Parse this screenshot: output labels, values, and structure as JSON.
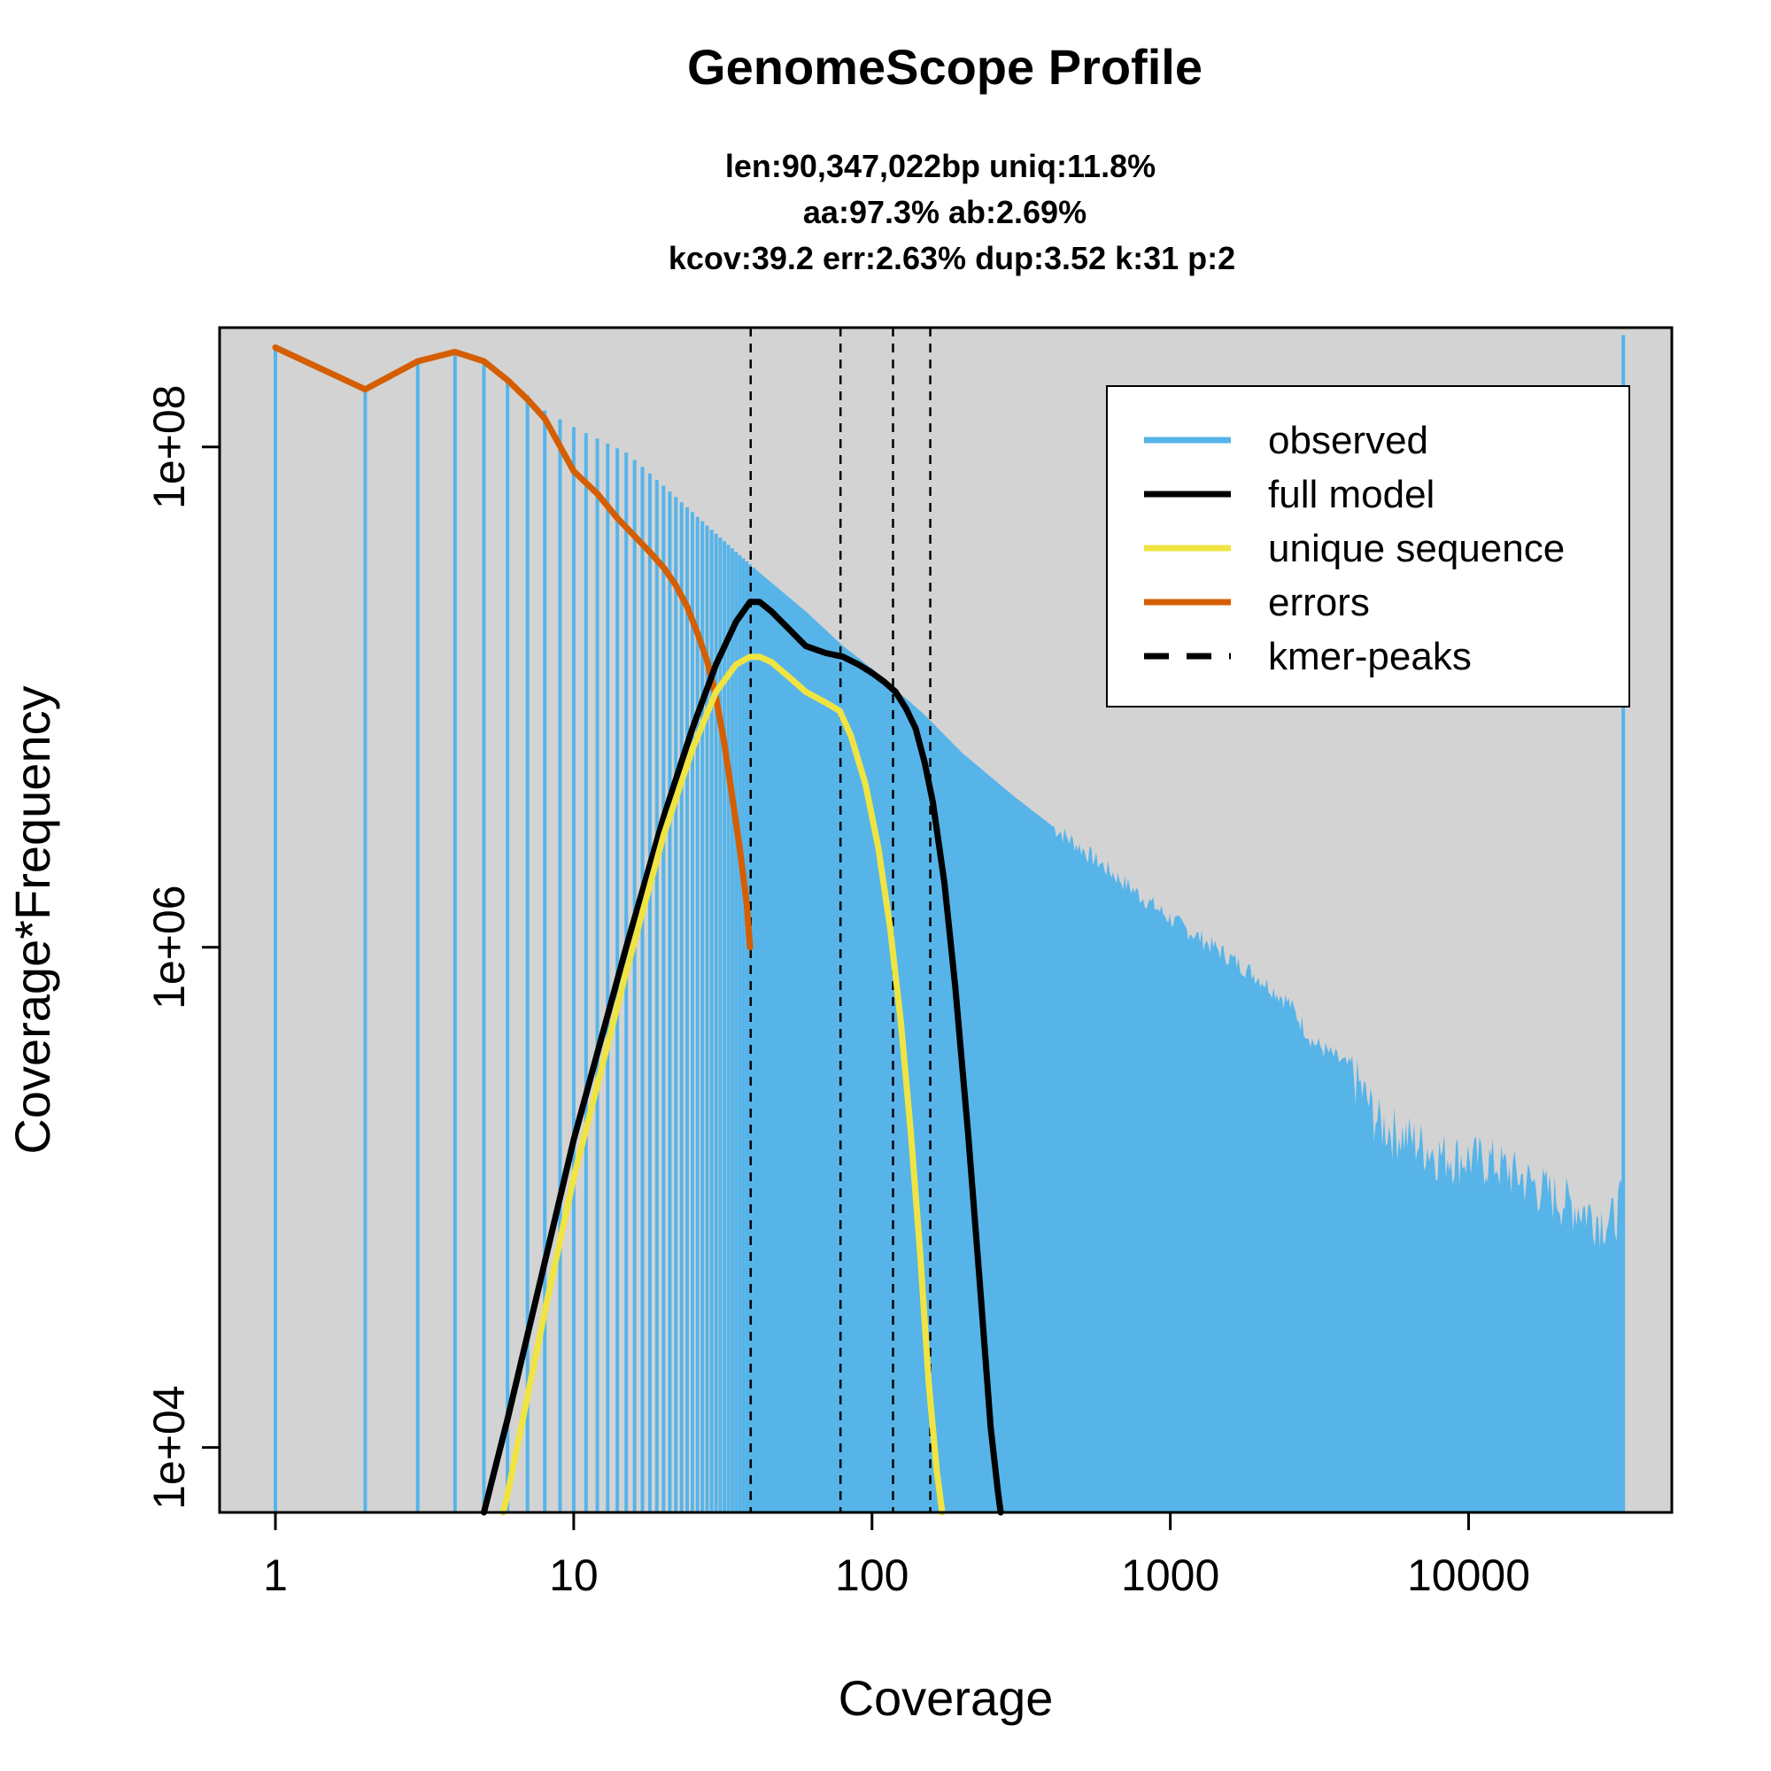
{
  "chart_data": {
    "type": "line",
    "title": "GenomeScope Profile",
    "subtitle_lines": [
      "len:90,347,022bp uniq:11.8%",
      "aa:97.3% ab:2.69%",
      "kcov:39.2 err:2.63%  dup:3.52  k:31 p:2"
    ],
    "xlabel": "Coverage",
    "ylabel": "Coverage*Frequency",
    "x_scale": "log",
    "y_scale": "log",
    "xlim": [
      0.65,
      48000
    ],
    "ylim": [
      5500,
      300000000
    ],
    "x_ticks": [
      {
        "value": 1,
        "label": "1"
      },
      {
        "value": 10,
        "label": "10"
      },
      {
        "value": 100,
        "label": "100"
      },
      {
        "value": 1000,
        "label": "1000"
      },
      {
        "value": 10000,
        "label": "10000"
      }
    ],
    "y_ticks": [
      {
        "value": 10000,
        "label": "1e+04"
      },
      {
        "value": 1000000,
        "label": "1e+06"
      },
      {
        "value": 100000000,
        "label": "1e+08"
      }
    ],
    "legend": {
      "position": "top-right",
      "entries": [
        {
          "label": "observed",
          "color": "#56B4E9",
          "style": "solid"
        },
        {
          "label": "full model",
          "color": "#000000",
          "style": "solid"
        },
        {
          "label": "unique sequence",
          "color": "#F0E442",
          "style": "solid"
        },
        {
          "label": "errors",
          "color": "#D55E00",
          "style": "solid"
        },
        {
          "label": "kmer-peaks",
          "color": "#000000",
          "style": "dashed"
        }
      ]
    },
    "kmer_peaks": [
      39.2,
      78.4,
      117.6,
      156.8
    ],
    "observed": {
      "color": "#56B4E9",
      "envelope": [
        [
          1,
          250000000
        ],
        [
          2,
          170000000
        ],
        [
          3,
          220000000
        ],
        [
          4,
          240000000
        ],
        [
          5,
          220000000
        ],
        [
          6,
          190000000
        ],
        [
          8,
          140000000
        ],
        [
          10,
          120000000
        ],
        [
          15,
          95000000
        ],
        [
          20,
          70000000
        ],
        [
          30,
          45000000
        ],
        [
          40,
          33000000
        ],
        [
          60,
          22000000
        ],
        [
          80,
          16000000
        ],
        [
          100,
          13000000
        ],
        [
          150,
          8500000
        ],
        [
          200,
          6000000
        ],
        [
          300,
          4000000
        ],
        [
          500,
          2500000
        ],
        [
          800,
          1600000
        ],
        [
          1000,
          1300000
        ],
        [
          1500,
          950000
        ],
        [
          2000,
          750000
        ],
        [
          2500,
          600000
        ],
        [
          3000,
          420000
        ],
        [
          4000,
          330000
        ],
        [
          5000,
          200000
        ],
        [
          8000,
          150000
        ],
        [
          12000,
          140000
        ],
        [
          20000,
          100000
        ],
        [
          30000,
          80000
        ],
        [
          33000,
          100000
        ]
      ],
      "spike": {
        "x": 33000,
        "y": 280000000
      }
    },
    "series": [
      {
        "name": "errors",
        "color": "#D55E00",
        "x": [
          1,
          2,
          3,
          4,
          5,
          6,
          7,
          8,
          10,
          12,
          14,
          16,
          18,
          20,
          22,
          24,
          26,
          28,
          30,
          32,
          34,
          36,
          38,
          39
        ],
        "y": [
          250000000,
          170000000,
          220000000,
          240000000,
          220000000,
          185000000,
          155000000,
          130000000,
          80000000,
          65000000,
          52000000,
          44000000,
          38000000,
          33000000,
          28000000,
          23000000,
          18000000,
          14000000,
          10000000,
          6500000,
          4000000,
          2500000,
          1500000,
          1000000
        ]
      },
      {
        "name": "full model",
        "color": "#000000",
        "x": [
          5,
          6,
          8,
          10,
          15,
          20,
          25,
          30,
          35,
          39,
          42,
          46,
          52,
          60,
          70,
          80,
          90,
          100,
          110,
          120,
          130,
          140,
          150,
          160,
          175,
          190,
          210,
          230,
          250,
          265,
          270
        ],
        "y": [
          5500,
          13000,
          55000,
          170000,
          1000000,
          3300000,
          7500000,
          13500000,
          20000000,
          24000000,
          24000000,
          22000000,
          19000000,
          16000000,
          15000000,
          14500000,
          13500000,
          12500000,
          11500000,
          10500000,
          9000000,
          7500000,
          5500000,
          3800000,
          1800000,
          700000,
          180000,
          45000,
          12000,
          6500,
          5500
        ]
      },
      {
        "name": "unique sequence",
        "color": "#F0E442",
        "x": [
          5.8,
          6,
          8,
          10,
          15,
          20,
          25,
          30,
          35,
          39,
          42,
          46,
          52,
          60,
          70,
          78,
          85,
          95,
          105,
          115,
          125,
          135,
          145,
          155,
          165,
          172
        ],
        "y": [
          5500,
          6500,
          35000,
          120000,
          800000,
          2800000,
          6200000,
          10500000,
          13500000,
          14500000,
          14500000,
          13800000,
          12200000,
          10500000,
          9500000,
          8800000,
          7000000,
          4500000,
          2500000,
          1200000,
          500000,
          180000,
          60000,
          18000,
          8000,
          5500
        ]
      }
    ]
  }
}
